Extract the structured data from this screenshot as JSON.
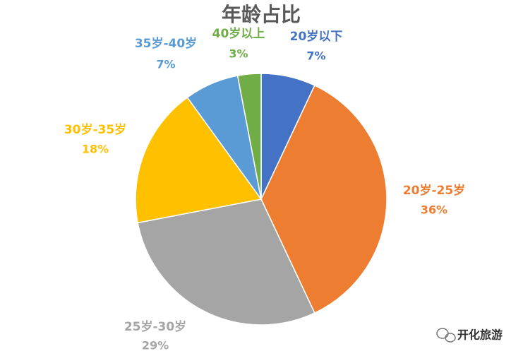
{
  "chart_data": {
    "type": "pie",
    "title": "年龄占比",
    "categories": [
      "20岁以下",
      "20岁-25岁",
      "25岁-30岁",
      "30岁-35岁",
      "35岁-40岁",
      "40岁以上"
    ],
    "values": [
      7,
      36,
      29,
      18,
      7,
      3
    ],
    "value_labels": [
      "7%",
      "36%",
      "29%",
      "18%",
      "7%",
      "3%"
    ],
    "colors": [
      "#4472c4",
      "#ed7d31",
      "#a5a5a5",
      "#ffc000",
      "#5b9bd5",
      "#70ad47"
    ]
  },
  "watermark": "开化旅游"
}
